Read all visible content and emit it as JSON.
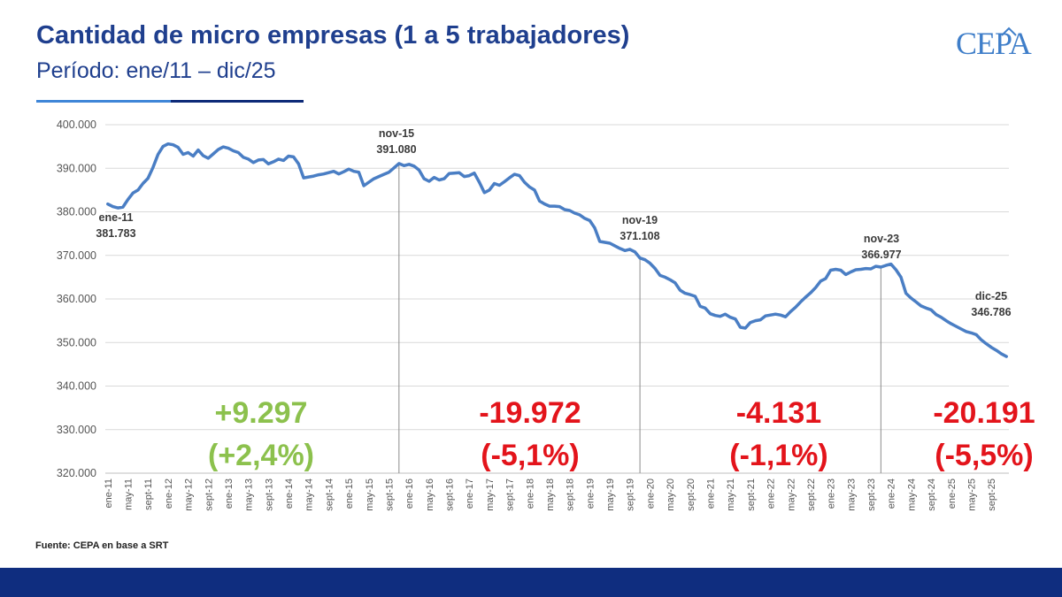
{
  "header": {
    "title": "Cantidad de micro empresas (1 a 5 trabajadores)",
    "subtitle": "Período: ene/11 – dic/25",
    "logo": "CEPA"
  },
  "footer": {
    "source": "Fuente: CEPA en base a SRT"
  },
  "colors": {
    "title": "#1f3f8e",
    "line": "#4a7ec4",
    "positive": "#8cc14d",
    "negative": "#e3141b",
    "footer_bar": "#0f2d7f"
  },
  "chart_data": {
    "type": "line",
    "title": "Cantidad de micro empresas (1 a 5 trabajadores)",
    "xlabel": "",
    "ylabel": "",
    "ylim": [
      320000,
      400000
    ],
    "ytick_labels": [
      "320.000",
      "330.000",
      "340.000",
      "350.000",
      "360.000",
      "370.000",
      "380.000",
      "390.000",
      "400.000"
    ],
    "xtick_labels": [
      "ene-11",
      "may-11",
      "sept-11",
      "ene-12",
      "may-12",
      "sept-12",
      "ene-13",
      "may-13",
      "sept-13",
      "ene-14",
      "may-14",
      "sept-14",
      "ene-15",
      "may-15",
      "sept-15",
      "ene-16",
      "may-16",
      "sept-16",
      "ene-17",
      "may-17",
      "sept-17",
      "ene-18",
      "may-18",
      "sept-18",
      "ene-19",
      "may-19",
      "sept-19",
      "ene-20",
      "may-20",
      "sept-20",
      "ene-21",
      "may-21",
      "sept-21",
      "ene-22",
      "may-22",
      "sept-22",
      "ene-23",
      "may-23",
      "sept-23",
      "ene-24",
      "may-24",
      "sept-24",
      "ene-25",
      "may-25",
      "sept-25"
    ],
    "grid": true,
    "legend": "none",
    "series": [
      {
        "values": [
          381783,
          381200,
          380900,
          381100,
          382800,
          384300,
          385000,
          386500,
          387700,
          390200,
          393200,
          395000,
          395600,
          395400,
          394800,
          393200,
          393600,
          392800,
          394200,
          392900,
          392300,
          393300,
          394300,
          394900,
          394600,
          394000,
          393600,
          392500,
          392100,
          391300,
          391900,
          392000,
          391000,
          391500,
          392100,
          391800,
          392800,
          392600,
          391000,
          387800,
          388000,
          388200,
          388500,
          388700,
          389000,
          389300,
          388700,
          389200,
          389800,
          389300,
          389100,
          386000,
          386800,
          387600,
          388100,
          388600,
          389100,
          390100,
          391080,
          390600,
          390900,
          390500,
          389600,
          387600,
          387000,
          387900,
          387300,
          387600,
          388800,
          388900,
          389000,
          388100,
          388300,
          388900,
          386800,
          384400,
          385000,
          386500,
          386100,
          386900,
          387800,
          388600,
          388300,
          386800,
          385700,
          385000,
          382500,
          381800,
          381300,
          381300,
          381200,
          380500,
          380300,
          379700,
          379300,
          378500,
          378000,
          376300,
          373200,
          373000,
          372800,
          372200,
          371600,
          371108,
          371400,
          370800,
          369400,
          369000,
          368200,
          367000,
          365400,
          365000,
          364400,
          363700,
          362000,
          361300,
          361000,
          360600,
          358300,
          357900,
          356600,
          356200,
          356000,
          356500,
          355800,
          355400,
          353500,
          353300,
          354600,
          355000,
          355200,
          356100,
          356300,
          356500,
          356300,
          355900,
          357100,
          358100,
          359300,
          360400,
          361400,
          362600,
          364100,
          364700,
          366600,
          366800,
          366600,
          365600,
          366200,
          366700,
          366800,
          366977,
          366900,
          367500,
          367300,
          367700,
          368000,
          366700,
          365000,
          361300,
          360200,
          359300,
          358400,
          357900,
          357500,
          356400,
          355800,
          355000,
          354300,
          353700,
          353100,
          352500,
          352200,
          351800,
          350600,
          349700,
          348900,
          348200,
          347400,
          346786
        ]
      }
    ],
    "annotations": [
      {
        "date": "ene-11",
        "value": "381.783"
      },
      {
        "date": "nov-15",
        "value": "391.080"
      },
      {
        "date": "nov-19",
        "value": "371.108"
      },
      {
        "date": "nov-23",
        "value": "366.977"
      },
      {
        "date": "dic-25",
        "value": "346.786"
      }
    ],
    "period_changes": [
      {
        "abs": "+9.297",
        "pct": "(+2,4%)",
        "color": "#8cc14d"
      },
      {
        "abs": "-19.972",
        "pct": "(-5,1%)",
        "color": "#e3141b"
      },
      {
        "abs": "-4.131",
        "pct": "(-1,1%)",
        "color": "#e3141b"
      },
      {
        "abs": "-20.191",
        "pct": "(-5,5%)",
        "color": "#e3141b"
      }
    ]
  }
}
